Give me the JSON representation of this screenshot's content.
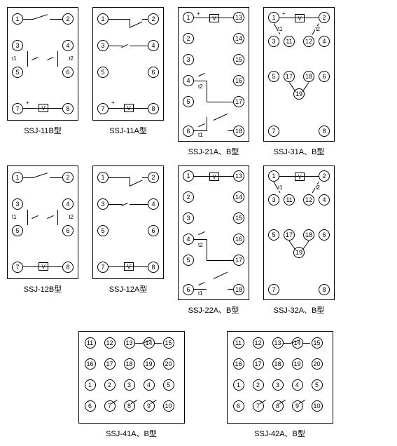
{
  "panels": {
    "p11b": {
      "caption": "SSJ-11B型",
      "pins": [
        1,
        2,
        3,
        4,
        5,
        6,
        7,
        8
      ],
      "t_labels": [
        "t1",
        "t2"
      ],
      "polarity": "+",
      "meter": "V"
    },
    "p11a": {
      "caption": "SSJ-11A型",
      "pins": [
        1,
        2,
        3,
        4,
        5,
        6,
        7,
        8
      ],
      "polarity": "+",
      "meter": "V"
    },
    "p21": {
      "caption": "SSJ-21A、B型",
      "pins": [
        1,
        2,
        3,
        4,
        5,
        6,
        13,
        14,
        15,
        16,
        17,
        18
      ],
      "polarity": "+",
      "meter": "V",
      "t_labels": [
        "t1",
        "t2"
      ]
    },
    "p31": {
      "caption": "SSJ-31A、B型",
      "pins": [
        1,
        2,
        3,
        4,
        5,
        6,
        7,
        8,
        11,
        12,
        17,
        18,
        19
      ],
      "polarity": "+",
      "meter": "V",
      "t_labels": [
        "t1",
        "t2"
      ]
    },
    "p12b": {
      "caption": "SSJ-12B型",
      "pins": [
        1,
        2,
        3,
        4,
        5,
        6,
        7,
        8
      ],
      "t_labels": [
        "t1",
        "t2"
      ],
      "meter": "V"
    },
    "p12a": {
      "caption": "SSJ-12A型",
      "pins": [
        1,
        2,
        3,
        4,
        5,
        6,
        7,
        8
      ],
      "meter": "V"
    },
    "p22": {
      "caption": "SSJ-22A、B型",
      "pins": [
        1,
        2,
        3,
        4,
        5,
        6,
        13,
        14,
        15,
        16,
        17,
        18
      ],
      "meter": "V",
      "t_labels": [
        "t1",
        "t2"
      ]
    },
    "p32": {
      "caption": "SSJ-32A、B型",
      "pins": [
        1,
        2,
        3,
        4,
        5,
        6,
        7,
        8,
        11,
        12,
        17,
        18,
        19
      ],
      "meter": "V",
      "t_labels": [
        "t1",
        "t2"
      ]
    },
    "p41": {
      "caption": "SSJ-41A、B型",
      "pins": [
        1,
        2,
        3,
        4,
        5,
        6,
        7,
        8,
        9,
        10,
        11,
        12,
        13,
        14,
        15,
        16,
        17,
        18,
        19,
        20
      ]
    },
    "p42": {
      "caption": "SSJ-42A、B型",
      "pins": [
        1,
        2,
        3,
        4,
        5,
        6,
        7,
        8,
        9,
        10,
        11,
        12,
        13,
        14,
        15,
        16,
        17,
        18,
        19,
        20
      ]
    }
  },
  "colors": {
    "stroke": "#000000",
    "background": "#ffffff"
  },
  "layout": {
    "small_box": {
      "w": 100,
      "h": 160
    },
    "tall_box": {
      "w": 100,
      "h": 190
    },
    "wide_box": {
      "w": 150,
      "h": 130
    },
    "pin_diameter": 16,
    "font_caption": 11,
    "font_pin": 9,
    "font_label": 8
  }
}
